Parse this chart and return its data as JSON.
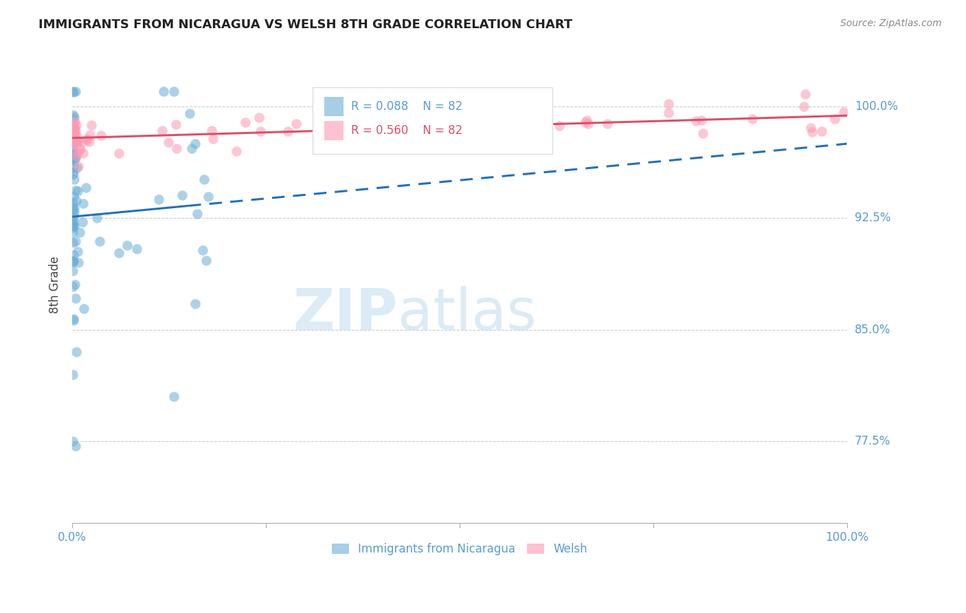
{
  "title": "IMMIGRANTS FROM NICARAGUA VS WELSH 8TH GRADE CORRELATION CHART",
  "source": "Source: ZipAtlas.com",
  "ylabel": "8th Grade",
  "ytick_labels": [
    "100.0%",
    "92.5%",
    "85.0%",
    "77.5%"
  ],
  "ytick_values": [
    1.0,
    0.925,
    0.85,
    0.775
  ],
  "xmin": 0.0,
  "xmax": 1.0,
  "ymin": 0.72,
  "ymax": 1.04,
  "legend_blue_label": "Immigrants from Nicaragua",
  "legend_pink_label": "Welsh",
  "legend_r_blue": "0.088",
  "legend_n_blue": "82",
  "legend_r_pink": "0.560",
  "legend_n_pink": "82",
  "blue_color": "#6baed6",
  "pink_color": "#fb9ab4",
  "trendline_blue_color": "#2171b5",
  "trendline_pink_color": "#d9506a",
  "blue_r": 0.088,
  "pink_r": 0.56
}
